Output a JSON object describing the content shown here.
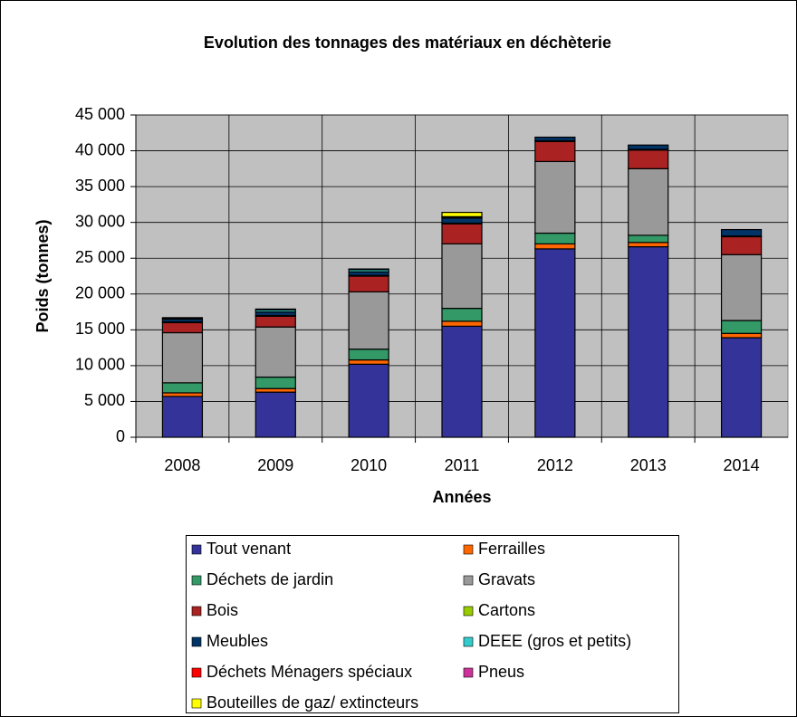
{
  "chart_data": {
    "type": "stacked-bar",
    "title": "Evolution des tonnages des matériaux en déchèterie",
    "x_label": "Années",
    "y_label": "Poids (tonnes)",
    "categories": [
      "2008",
      "2009",
      "2010",
      "2011",
      "2012",
      "2013",
      "2014"
    ],
    "series": [
      {
        "name": "Tout venant",
        "color": "#333399",
        "values": [
          5700,
          6300,
          10200,
          15500,
          26300,
          26600,
          13900
        ]
      },
      {
        "name": "Ferrailles",
        "color": "#ff6600",
        "values": [
          500,
          500,
          600,
          700,
          700,
          600,
          600
        ]
      },
      {
        "name": "Déchets de jardin",
        "color": "#339966",
        "values": [
          1400,
          1600,
          1500,
          1800,
          1500,
          1000,
          1800
        ]
      },
      {
        "name": "Gravats",
        "color": "#999999",
        "values": [
          7000,
          7000,
          8000,
          9000,
          10000,
          9300,
          9200
        ]
      },
      {
        "name": "Bois",
        "color": "#aa2222",
        "values": [
          1400,
          1500,
          2200,
          2800,
          2800,
          2600,
          2500
        ]
      },
      {
        "name": "Cartons",
        "color": "#99cc00",
        "values": [
          100,
          100,
          100,
          100,
          100,
          100,
          100
        ]
      },
      {
        "name": "Meubles",
        "color": "#003366",
        "values": [
          400,
          500,
          500,
          700,
          500,
          600,
          900
        ]
      },
      {
        "name": "DEEE (gros et petits)",
        "color": "#33cccc",
        "values": [
          100,
          300,
          300,
          100,
          0,
          0,
          0
        ]
      },
      {
        "name": "Déchets Ménagers spéciaux",
        "color": "#ff0000",
        "values": [
          100,
          100,
          100,
          100,
          0,
          0,
          0
        ]
      },
      {
        "name": "Pneus",
        "color": "#cc3399",
        "values": [
          0,
          0,
          0,
          0,
          0,
          0,
          0
        ]
      },
      {
        "name": "Bouteilles de gaz/ extincteurs",
        "color": "#ffff00",
        "values": [
          0,
          0,
          0,
          600,
          0,
          0,
          0
        ]
      }
    ],
    "ylim": [
      0,
      45000
    ],
    "yticks": [
      0,
      {
        "value": 5000,
        "label": "5 000"
      },
      {
        "value": 10000,
        "label": "10 000"
      },
      {
        "value": 15000,
        "label": "15 000"
      },
      {
        "value": 20000,
        "label": "20 000"
      },
      {
        "value": 25000,
        "label": "25 000"
      },
      {
        "value": 30000,
        "label": "30 000"
      },
      {
        "value": 35000,
        "label": "35 000"
      },
      {
        "value": 40000,
        "label": "40 000"
      },
      {
        "value": 45000,
        "label": "45 000"
      }
    ],
    "grid": true,
    "plot_background": "#c0c0c0"
  }
}
